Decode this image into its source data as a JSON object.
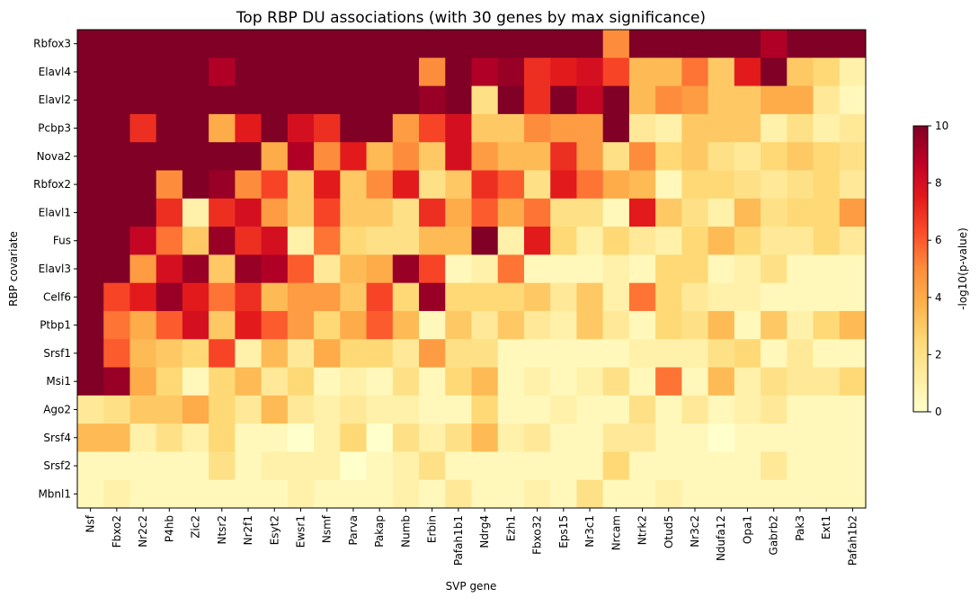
{
  "chart_data": {
    "type": "heatmap",
    "title": "Top RBP DU associations (with 30 genes by max significance)",
    "xlabel": "SVP gene",
    "ylabel": "RBP covariate",
    "x": [
      "Nsf",
      "Fbxo2",
      "Nr2c2",
      "P4hb",
      "Zic2",
      "Ntsr2",
      "Nr2f1",
      "Esyt2",
      "Ewsr1",
      "Nsmf",
      "Parva",
      "Pakap",
      "Numb",
      "Erbin",
      "Pafah1b1",
      "Ndrg4",
      "Ezh1",
      "Fbxo32",
      "Eps15",
      "Nr3c1",
      "Nrcam",
      "Ntrk2",
      "Otud5",
      "Nr3c2",
      "Ndufa12",
      "Opa1",
      "Gabrb2",
      "Pak3",
      "Ext1",
      "Pafah1b2"
    ],
    "y": [
      "Rbfox3",
      "Elavl4",
      "Elavl2",
      "Pcbp3",
      "Nova2",
      "Rbfox2",
      "Elavl1",
      "Fus",
      "Elavl3",
      "Celf6",
      "Ptbp1",
      "Srsf1",
      "Msi1",
      "Ago2",
      "Srsf4",
      "Srsf2",
      "Mbnl1"
    ],
    "values": [
      [
        10,
        10,
        10,
        10,
        10,
        10,
        10,
        10,
        10,
        10,
        10,
        10,
        10,
        10,
        10,
        10,
        10,
        10,
        10,
        10,
        5,
        10,
        10,
        10,
        10,
        10,
        9,
        10,
        10,
        10
      ],
      [
        10,
        10,
        10,
        10,
        10,
        9,
        10,
        10,
        10,
        10,
        10,
        10,
        10,
        5,
        10,
        9,
        9.5,
        7,
        7.5,
        8,
        6.5,
        3.5,
        3.5,
        5.5,
        3,
        7.5,
        10,
        3,
        2.5,
        1
      ],
      [
        10,
        10,
        10,
        10,
        10,
        10,
        10,
        10,
        10,
        10,
        10,
        10,
        10,
        9.5,
        10,
        2,
        10,
        7,
        10,
        8.5,
        10,
        3.5,
        5,
        4.5,
        3,
        3,
        4,
        4,
        1.5,
        0.5
      ],
      [
        10,
        10,
        7,
        10,
        10,
        4,
        7.5,
        10,
        8,
        7,
        10,
        10,
        4.5,
        6.5,
        8,
        3,
        3,
        5,
        4.5,
        4.5,
        10,
        1.5,
        1,
        3,
        3,
        3,
        1,
        2,
        1,
        1.5
      ],
      [
        10,
        10,
        10,
        10,
        10,
        10,
        10,
        4,
        9,
        5,
        7.5,
        3.5,
        5,
        3,
        8,
        4.5,
        3.5,
        3.5,
        7,
        4.5,
        2,
        5,
        2.5,
        3,
        2,
        1.5,
        2.5,
        3,
        2.5,
        2
      ],
      [
        10,
        10,
        10,
        5,
        10,
        9.5,
        5,
        6.5,
        3,
        7.5,
        3,
        5,
        7.5,
        2,
        3,
        7,
        6,
        2,
        7.5,
        5.5,
        4,
        3.5,
        0.5,
        2.5,
        2.5,
        2,
        1.5,
        2,
        2.5,
        1.5
      ],
      [
        10,
        10,
        10,
        7,
        1,
        7,
        8,
        4.5,
        3,
        6.5,
        3,
        3,
        2,
        7,
        4,
        6,
        4,
        5.5,
        2,
        2,
        0.5,
        7.5,
        3,
        2,
        1,
        3.5,
        2,
        2.5,
        2.5,
        4.5
      ],
      [
        10,
        10,
        8.5,
        5.5,
        3,
        9.5,
        7,
        8,
        1,
        5.5,
        2.5,
        2,
        2,
        3.5,
        3.5,
        10,
        1,
        7.5,
        2.5,
        1,
        2.5,
        1.5,
        1,
        2.5,
        3.5,
        2.5,
        1.5,
        1.5,
        2.5,
        1.5
      ],
      [
        10,
        10,
        4.5,
        8,
        9.5,
        3,
        9.5,
        9,
        6,
        1.5,
        3.5,
        4,
        9.5,
        6.5,
        0.5,
        1,
        5.5,
        0.5,
        0.5,
        0.5,
        1,
        0.5,
        2.5,
        2.5,
        0.5,
        1,
        2,
        0.5,
        0.5,
        0.5
      ],
      [
        10,
        6.5,
        7.5,
        9.5,
        7.5,
        5.5,
        7,
        3.5,
        4.5,
        4.5,
        3,
        6.5,
        2.5,
        9.5,
        2.5,
        2.5,
        2.5,
        3,
        1.5,
        3,
        1,
        5.5,
        2.5,
        1.5,
        1,
        1,
        0.5,
        0.5,
        0.5,
        0.5
      ],
      [
        10,
        5.5,
        4,
        6,
        8,
        3,
        7.5,
        6,
        4.5,
        2.5,
        4,
        6,
        3.5,
        0.5,
        3,
        1.5,
        3,
        1.5,
        1,
        3,
        1.5,
        0.5,
        2.5,
        2,
        3.5,
        0.5,
        3,
        1,
        2.5,
        3.5
      ],
      [
        10,
        6,
        3.5,
        3,
        2.5,
        6.5,
        1,
        3.5,
        1.5,
        4,
        2.5,
        2.5,
        1.5,
        4.5,
        2,
        2,
        0.5,
        0.5,
        0.5,
        0.5,
        0.5,
        1,
        1,
        1,
        2,
        2.5,
        0.5,
        1.5,
        0.5,
        0.5
      ],
      [
        10,
        9.5,
        4,
        2.5,
        0.5,
        2.5,
        3.5,
        1.5,
        2.5,
        0.5,
        1,
        0.5,
        2,
        0.5,
        2.5,
        3.5,
        0.5,
        1,
        0.5,
        1,
        2,
        0.5,
        5.5,
        0.5,
        3.5,
        1,
        2,
        1.5,
        1.5,
        2.5
      ],
      [
        1.5,
        2,
        3,
        3,
        4,
        2.5,
        1.5,
        3.5,
        1.5,
        1,
        1.5,
        1,
        1,
        0.5,
        0.5,
        2.5,
        0.5,
        0.5,
        1,
        0.5,
        0.5,
        2,
        0.5,
        1.5,
        0.5,
        1,
        1.5,
        0.5,
        0.5,
        0.5
      ],
      [
        3.5,
        3.5,
        1,
        2,
        1,
        2.5,
        0.5,
        0.5,
        0,
        1,
        2.5,
        0,
        2,
        1,
        2,
        3.5,
        1,
        1.5,
        0.5,
        0.5,
        1.5,
        1.5,
        0.5,
        0.5,
        0,
        0.5,
        0.5,
        0.5,
        0.5,
        0.5
      ],
      [
        0.5,
        0.5,
        0.5,
        0.5,
        0.5,
        2,
        0.5,
        1,
        1,
        1,
        0,
        0.5,
        1,
        2,
        0.5,
        0.5,
        0.5,
        0.5,
        0.5,
        0.5,
        2.5,
        0.5,
        0.5,
        0.5,
        0.5,
        0.5,
        1.5,
        0.5,
        0.5,
        0.5
      ],
      [
        0.5,
        1,
        0.5,
        0.5,
        0.5,
        0.5,
        0.5,
        0.5,
        1,
        0.5,
        0.5,
        0.5,
        1,
        0.5,
        1.5,
        0.5,
        0.5,
        1,
        0.5,
        2,
        0.5,
        0.5,
        1,
        0.5,
        0.5,
        0.5,
        0.5,
        0.5,
        0.5,
        0.5
      ]
    ],
    "vmin": 0,
    "vmax": 10,
    "colorbar": {
      "label": "-log10(p-value)",
      "ticks": [
        "0",
        "2",
        "4",
        "6",
        "8",
        "10"
      ]
    },
    "colormap": "YlOrRd",
    "grid": false
  }
}
